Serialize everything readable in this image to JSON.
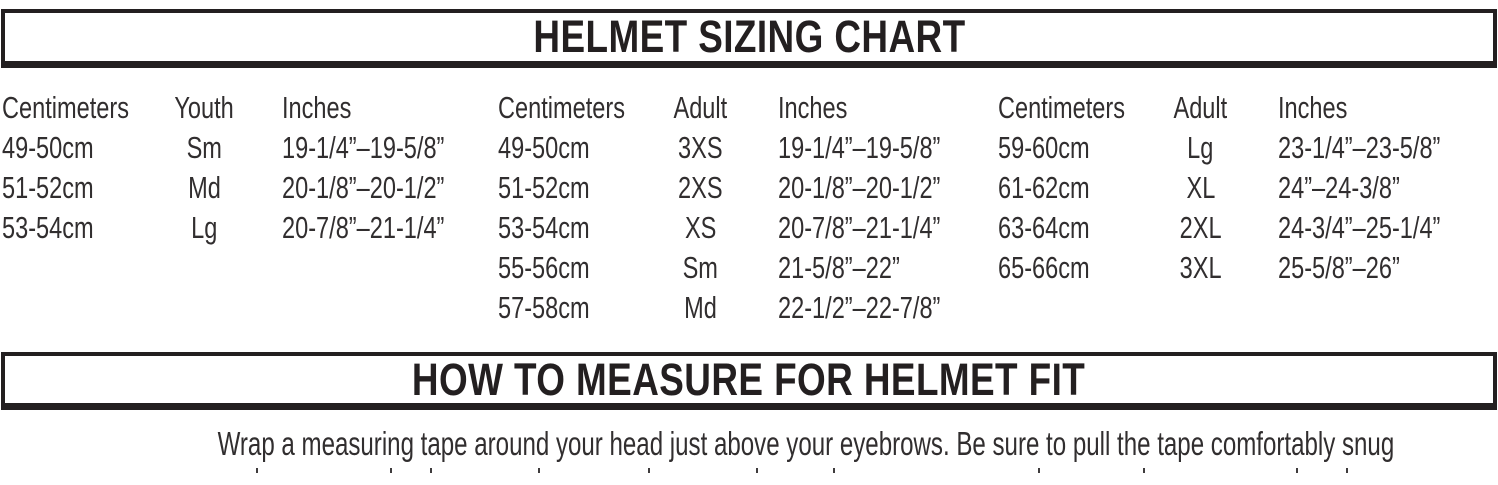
{
  "page": {
    "title1": "HELMET SIZING CHART",
    "title2": "HOW TO MEASURE FOR HELMET FIT",
    "instruction": "Wrap a measuring tape around your head just above your eyebrows. Be sure to pull the tape comfortably snug"
  },
  "colors": {
    "ink": "#231f20",
    "table_text": "#312e2f",
    "background": "#ffffff"
  },
  "sizing_groups": [
    {
      "headers": {
        "cm": "Centimeters",
        "size": "Youth",
        "inches": "Inches"
      },
      "rows": [
        {
          "cm": "49-50cm",
          "size": "Sm",
          "inches": "19-1/4”–19-5/8”"
        },
        {
          "cm": "51-52cm",
          "size": "Md",
          "inches": "20-1/8”–20-1/2”"
        },
        {
          "cm": "53-54cm",
          "size": "Lg",
          "inches": "20-7/8”–21-1/4”"
        }
      ]
    },
    {
      "headers": {
        "cm": "Centimeters",
        "size": "Adult",
        "inches": "Inches"
      },
      "rows": [
        {
          "cm": "49-50cm",
          "size": "3XS",
          "inches": "19-1/4”–19-5/8”"
        },
        {
          "cm": "51-52cm",
          "size": "2XS",
          "inches": "20-1/8”–20-1/2”"
        },
        {
          "cm": "53-54cm",
          "size": "XS",
          "inches": "20-7/8”–21-1/4”"
        },
        {
          "cm": "55-56cm",
          "size": "Sm",
          "inches": "21-5/8”–22”"
        },
        {
          "cm": "57-58cm",
          "size": "Md",
          "inches": "22-1/2”–22-7/8”"
        }
      ]
    },
    {
      "headers": {
        "cm": "Centimeters",
        "size": "Adult",
        "inches": "Inches"
      },
      "rows": [
        {
          "cm": "59-60cm",
          "size": "Lg",
          "inches": "23-1/4”–23-5/8”"
        },
        {
          "cm": "61-62cm",
          "size": "XL",
          "inches": "24”–24-3/8”"
        },
        {
          "cm": "63-64cm",
          "size": "2XL",
          "inches": "24-3/4”–25-1/4”"
        },
        {
          "cm": "65-66cm",
          "size": "3XL",
          "inches": "25-5/8”–26”"
        }
      ]
    }
  ]
}
